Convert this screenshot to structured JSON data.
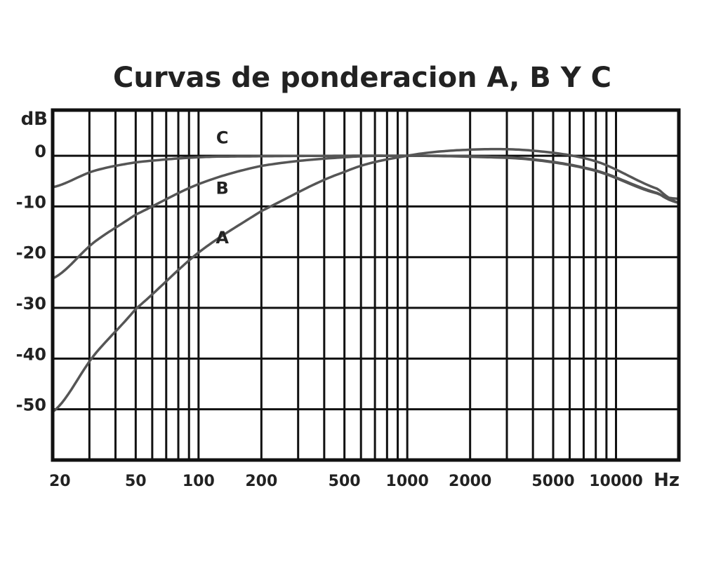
{
  "chart_data": {
    "type": "line",
    "title": "Curvas de ponderacion A, B Y C",
    "ylabel": "dB",
    "xlabel": "Hz",
    "x_scale": "log",
    "xlim": [
      20,
      20000
    ],
    "ylim": [
      -60,
      9
    ],
    "grid": true,
    "y_ticks": [
      0,
      -10,
      -20,
      -30,
      -40,
      -50
    ],
    "y_tick_labels": [
      "0",
      "-10",
      "-20",
      "-30",
      "-40",
      "-50"
    ],
    "x_ticks": [
      20,
      50,
      100,
      200,
      500,
      1000,
      2000,
      5000,
      10000
    ],
    "x_tick_labels": [
      "20",
      "50",
      "100",
      "200",
      "500",
      "1000",
      "2000",
      "5000",
      "10000"
    ],
    "x_minor_gridlines": [
      30,
      40,
      60,
      70,
      80,
      90,
      300,
      400,
      600,
      700,
      800,
      900,
      3000,
      4000,
      6000,
      7000,
      8000,
      9000
    ],
    "series": [
      {
        "name": "C",
        "color": "#555555",
        "x": [
          20,
          31.5,
          50,
          100,
          200,
          500,
          1000,
          2000,
          4000,
          8000,
          16000,
          20000
        ],
        "y": [
          -6.2,
          -3,
          -1.3,
          -0.3,
          -0.1,
          0,
          0,
          -0.2,
          -0.8,
          -3,
          -7.5,
          -8.5
        ]
      },
      {
        "name": "B",
        "color": "#555555",
        "x": [
          20,
          31.5,
          50,
          100,
          200,
          500,
          1000,
          2000,
          4000,
          8000,
          16000,
          20000
        ],
        "y": [
          -24.2,
          -17.1,
          -11.6,
          -5.6,
          -2,
          -0.3,
          0,
          -0.1,
          -0.7,
          -2.9,
          -7.4,
          -9.3
        ]
      },
      {
        "name": "A",
        "color": "#555555",
        "x": [
          20,
          31.5,
          50,
          100,
          200,
          500,
          1000,
          2000,
          4000,
          8000,
          16000,
          20000
        ],
        "y": [
          -50.5,
          -39.4,
          -30.2,
          -19.1,
          -10.9,
          -3.2,
          0,
          1.2,
          1,
          -1.1,
          -6.6,
          -9.3
        ]
      }
    ],
    "curve_labels": [
      {
        "text": "C",
        "x": 130,
        "y": 2.4
      },
      {
        "text": "B",
        "x": 130,
        "y": -7.5
      },
      {
        "text": "A",
        "x": 130,
        "y": -17.3
      }
    ]
  }
}
